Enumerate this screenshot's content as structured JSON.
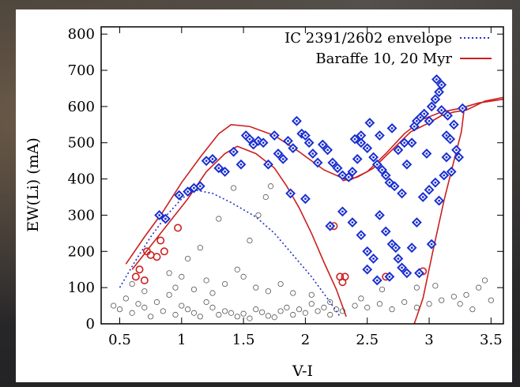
{
  "chart_data": {
    "type": "scatter",
    "title": "",
    "xlabel": "V-I",
    "ylabel": "EW(Li) (mA)",
    "xlim": [
      0.35,
      3.6
    ],
    "ylim": [
      0,
      820
    ],
    "x_ticks": [
      "0.5",
      "1",
      "1.5",
      "2",
      "2.5",
      "3",
      "3.5"
    ],
    "x_tick_values": [
      0.5,
      1.0,
      1.5,
      2.0,
      2.5,
      3.0,
      3.5
    ],
    "y_ticks": [
      "0",
      "100",
      "200",
      "300",
      "400",
      "500",
      "600",
      "700",
      "800"
    ],
    "y_tick_values": [
      0,
      100,
      200,
      300,
      400,
      500,
      600,
      700,
      800
    ],
    "grid": false,
    "legend_position": "top-right",
    "colors": {
      "blue": "#1a2fd0",
      "red": "#cc2020",
      "gray": "#555555",
      "dotted_line": "#2030c8"
    },
    "lines": [
      {
        "name": "IC 2391/2602 envelope",
        "style": "dotted",
        "color": "#2030c8",
        "points": [
          [
            0.5,
            100
          ],
          [
            0.62,
            170
          ],
          [
            0.75,
            240
          ],
          [
            0.88,
            300
          ],
          [
            1.0,
            345
          ],
          [
            1.1,
            370
          ],
          [
            1.25,
            360
          ],
          [
            1.4,
            335
          ],
          [
            1.6,
            295
          ],
          [
            1.75,
            250
          ],
          [
            1.9,
            190
          ],
          [
            2.05,
            130
          ],
          [
            2.2,
            60
          ],
          [
            2.28,
            20
          ]
        ]
      },
      {
        "name": "Baraffe 10, 20 Myr",
        "style": "solid",
        "color": "#cc2020",
        "segments": [
          [
            [
              0.55,
              165
            ],
            [
              0.7,
              240
            ],
            [
              0.85,
              310
            ],
            [
              1.0,
              390
            ],
            [
              1.15,
              460
            ],
            [
              1.3,
              525
            ],
            [
              1.4,
              550
            ],
            [
              1.55,
              545
            ],
            [
              1.75,
              520
            ],
            [
              1.95,
              475
            ],
            [
              2.15,
              425
            ],
            [
              2.35,
              395
            ],
            [
              2.5,
              420
            ],
            [
              2.65,
              470
            ],
            [
              2.8,
              525
            ],
            [
              2.95,
              565
            ],
            [
              3.1,
              585
            ],
            [
              3.25,
              595
            ],
            [
              3.4,
              610
            ],
            [
              3.6,
              620
            ]
          ],
          [
            [
              0.6,
              150
            ],
            [
              0.75,
              215
            ],
            [
              0.9,
              280
            ],
            [
              1.05,
              345
            ],
            [
              1.2,
              420
            ],
            [
              1.35,
              470
            ],
            [
              1.45,
              490
            ],
            [
              1.6,
              470
            ],
            [
              1.75,
              430
            ],
            [
              1.85,
              380
            ],
            [
              1.95,
              320
            ],
            [
              2.05,
              250
            ],
            [
              2.15,
              170
            ],
            [
              2.25,
              95
            ],
            [
              2.33,
              20
            ]
          ],
          [
            [
              2.3,
              395
            ],
            [
              2.42,
              405
            ],
            [
              2.55,
              430
            ],
            [
              2.7,
              480
            ],
            [
              2.85,
              530
            ],
            [
              3.0,
              555
            ],
            [
              3.1,
              575
            ],
            [
              3.2,
              585
            ],
            [
              3.3,
              590
            ],
            [
              3.45,
              615
            ],
            [
              3.6,
              625
            ]
          ],
          [
            [
              2.88,
              0
            ],
            [
              2.95,
              70
            ],
            [
              3.03,
              200
            ],
            [
              3.12,
              340
            ],
            [
              3.2,
              450
            ],
            [
              3.26,
              530
            ],
            [
              3.28,
              585
            ]
          ]
        ]
      }
    ],
    "series": [
      {
        "marker": "diamond",
        "color": "#1a2fd0",
        "points": [
          [
            0.82,
            300
          ],
          [
            0.87,
            290
          ],
          [
            0.98,
            355
          ],
          [
            1.05,
            365
          ],
          [
            1.1,
            375
          ],
          [
            1.15,
            380
          ],
          [
            1.2,
            450
          ],
          [
            1.25,
            455
          ],
          [
            1.3,
            430
          ],
          [
            1.35,
            420
          ],
          [
            1.42,
            475
          ],
          [
            1.48,
            440
          ],
          [
            1.52,
            520
          ],
          [
            1.55,
            510
          ],
          [
            1.58,
            495
          ],
          [
            1.62,
            505
          ],
          [
            1.66,
            500
          ],
          [
            1.7,
            440
          ],
          [
            1.75,
            520
          ],
          [
            1.78,
            470
          ],
          [
            1.82,
            455
          ],
          [
            1.86,
            505
          ],
          [
            1.9,
            485
          ],
          [
            1.93,
            560
          ],
          [
            1.97,
            525
          ],
          [
            2.0,
            520
          ],
          [
            2.03,
            500
          ],
          [
            2.06,
            470
          ],
          [
            2.1,
            445
          ],
          [
            2.14,
            495
          ],
          [
            2.18,
            480
          ],
          [
            2.22,
            445
          ],
          [
            2.26,
            430
          ],
          [
            2.3,
            410
          ],
          [
            2.35,
            405
          ],
          [
            2.38,
            420
          ],
          [
            2.42,
            455
          ],
          [
            2.45,
            500
          ],
          [
            2.5,
            485
          ],
          [
            2.55,
            460
          ],
          [
            2.58,
            440
          ],
          [
            2.62,
            425
          ],
          [
            2.65,
            410
          ],
          [
            2.68,
            390
          ],
          [
            2.72,
            380
          ],
          [
            2.75,
            480
          ],
          [
            2.78,
            360
          ],
          [
            2.82,
            440
          ],
          [
            2.86,
            500
          ],
          [
            2.88,
            545
          ],
          [
            2.9,
            560
          ],
          [
            2.93,
            570
          ],
          [
            2.96,
            580
          ],
          [
            3.0,
            560
          ],
          [
            3.02,
            600
          ],
          [
            3.05,
            620
          ],
          [
            3.08,
            640
          ],
          [
            3.1,
            590
          ],
          [
            3.14,
            520
          ],
          [
            3.17,
            510
          ],
          [
            3.2,
            550
          ],
          [
            3.24,
            460
          ],
          [
            3.27,
            595
          ],
          [
            1.88,
            360
          ],
          [
            2.0,
            345
          ],
          [
            2.2,
            270
          ],
          [
            2.3,
            310
          ],
          [
            2.38,
            280
          ],
          [
            2.45,
            245
          ],
          [
            2.5,
            200
          ],
          [
            2.55,
            180
          ],
          [
            2.6,
            300
          ],
          [
            2.65,
            255
          ],
          [
            2.7,
            220
          ],
          [
            2.75,
            180
          ],
          [
            2.78,
            155
          ],
          [
            2.82,
            140
          ],
          [
            2.86,
            210
          ],
          [
            2.9,
            280
          ],
          [
            2.95,
            350
          ],
          [
            3.0,
            370
          ],
          [
            3.05,
            390
          ],
          [
            3.12,
            410
          ],
          [
            3.18,
            420
          ],
          [
            3.22,
            480
          ],
          [
            2.52,
            555
          ],
          [
            2.6,
            520
          ],
          [
            2.7,
            540
          ],
          [
            2.8,
            500
          ],
          [
            2.98,
            470
          ],
          [
            3.06,
            675
          ],
          [
            3.1,
            660
          ],
          [
            3.15,
            575
          ],
          [
            2.4,
            510
          ],
          [
            2.45,
            520
          ],
          [
            2.5,
            150
          ],
          [
            2.58,
            120
          ],
          [
            2.68,
            130
          ],
          [
            2.73,
            210
          ],
          [
            2.92,
            140
          ],
          [
            3.02,
            220
          ],
          [
            3.08,
            340
          ],
          [
            3.14,
            460
          ]
        ]
      },
      {
        "marker": "circle",
        "color": "#cc2020",
        "points": [
          [
            0.63,
            130
          ],
          [
            0.66,
            150
          ],
          [
            0.7,
            120
          ],
          [
            0.72,
            200
          ],
          [
            0.75,
            190
          ],
          [
            0.8,
            185
          ],
          [
            0.83,
            230
          ],
          [
            0.86,
            200
          ],
          [
            0.97,
            265
          ],
          [
            2.23,
            270
          ],
          [
            2.28,
            130
          ],
          [
            2.32,
            130
          ],
          [
            2.3,
            115
          ],
          [
            2.65,
            130
          ],
          [
            2.95,
            145
          ]
        ]
      },
      {
        "marker": "circle",
        "color": "#555555",
        "points": [
          [
            0.45,
            50
          ],
          [
            0.5,
            40
          ],
          [
            0.55,
            70
          ],
          [
            0.6,
            30
          ],
          [
            0.65,
            55
          ],
          [
            0.7,
            45
          ],
          [
            0.75,
            20
          ],
          [
            0.8,
            60
          ],
          [
            0.85,
            35
          ],
          [
            0.9,
            80
          ],
          [
            0.95,
            25
          ],
          [
            1.0,
            50
          ],
          [
            1.05,
            40
          ],
          [
            1.1,
            30
          ],
          [
            1.15,
            20
          ],
          [
            1.2,
            60
          ],
          [
            1.25,
            45
          ],
          [
            1.3,
            25
          ],
          [
            1.35,
            35
          ],
          [
            1.4,
            30
          ],
          [
            1.45,
            20
          ],
          [
            1.5,
            28
          ],
          [
            1.55,
            15
          ],
          [
            1.6,
            40
          ],
          [
            1.65,
            32
          ],
          [
            1.7,
            22
          ],
          [
            1.75,
            18
          ],
          [
            1.8,
            35
          ],
          [
            1.85,
            45
          ],
          [
            1.9,
            25
          ],
          [
            1.95,
            40
          ],
          [
            2.0,
            30
          ],
          [
            2.05,
            55
          ],
          [
            2.1,
            35
          ],
          [
            2.15,
            45
          ],
          [
            2.2,
            25
          ],
          [
            2.25,
            40
          ],
          [
            2.3,
            35
          ],
          [
            2.4,
            50
          ],
          [
            2.5,
            45
          ],
          [
            2.6,
            55
          ],
          [
            2.7,
            40
          ],
          [
            2.8,
            60
          ],
          [
            2.9,
            45
          ],
          [
            3.0,
            55
          ],
          [
            3.1,
            65
          ],
          [
            3.2,
            75
          ],
          [
            3.3,
            80
          ],
          [
            3.4,
            100
          ],
          [
            3.5,
            65
          ],
          [
            1.2,
            120
          ],
          [
            1.35,
            110
          ],
          [
            1.5,
            130
          ],
          [
            1.6,
            100
          ],
          [
            1.7,
            90
          ],
          [
            1.8,
            110
          ],
          [
            1.9,
            85
          ],
          [
            1.05,
            180
          ],
          [
            1.15,
            210
          ],
          [
            1.3,
            290
          ],
          [
            1.45,
            150
          ],
          [
            1.55,
            230
          ],
          [
            1.62,
            300
          ],
          [
            1.68,
            350
          ],
          [
            1.72,
            380
          ],
          [
            1.42,
            375
          ],
          [
            0.9,
            140
          ],
          [
            0.95,
            100
          ],
          [
            0.7,
            90
          ],
          [
            0.6,
            110
          ],
          [
            1.0,
            130
          ],
          [
            1.1,
            95
          ],
          [
            1.25,
            85
          ],
          [
            2.05,
            80
          ],
          [
            2.2,
            60
          ],
          [
            2.45,
            70
          ],
          [
            2.62,
            95
          ],
          [
            2.9,
            100
          ],
          [
            3.05,
            105
          ],
          [
            3.25,
            55
          ],
          [
            3.35,
            40
          ],
          [
            3.45,
            120
          ]
        ]
      }
    ]
  },
  "legend": [
    {
      "label": "IC 2391/2602 envelope",
      "style": "dotted",
      "color": "#2030c8"
    },
    {
      "label": "Baraffe 10, 20 Myr",
      "style": "solid",
      "color": "#cc2020"
    }
  ]
}
